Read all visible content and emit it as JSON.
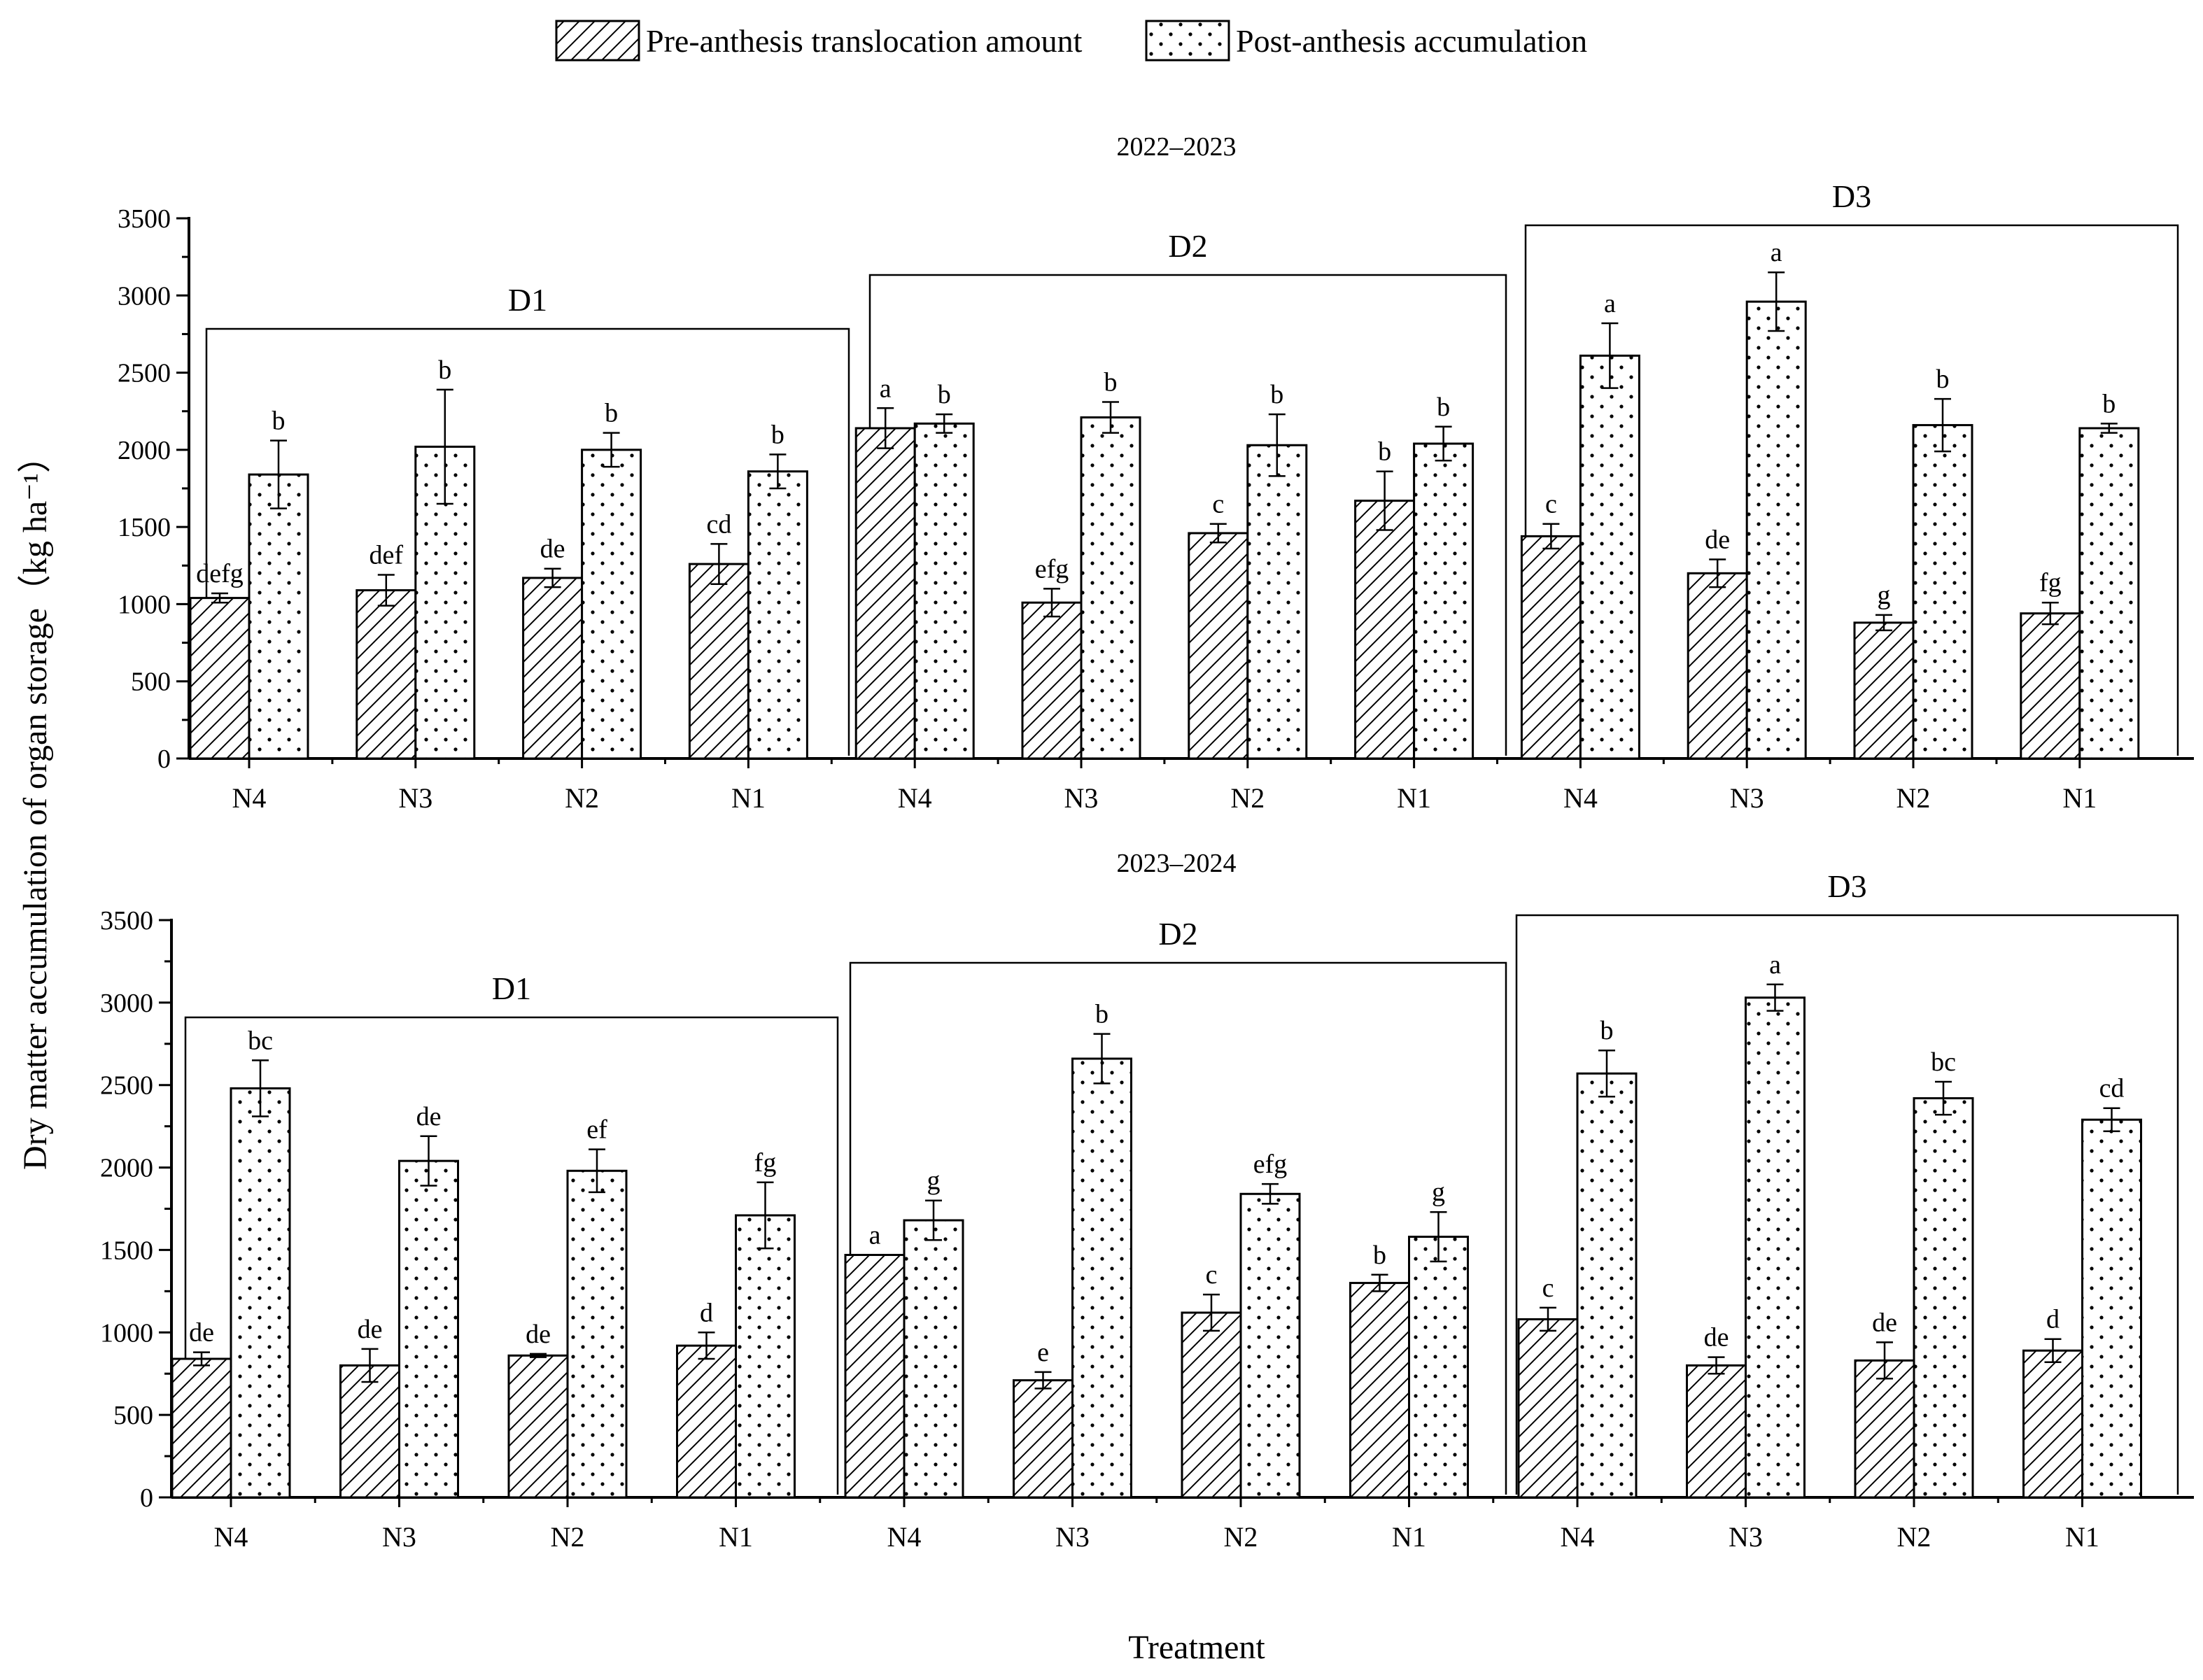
{
  "legend": [
    {
      "label": "Pre-anthesis translocation amount",
      "pattern": "hatch"
    },
    {
      "label": "Post-anthesis accumulation",
      "pattern": "dots"
    }
  ],
  "axes": {
    "ylabel": "Dry matter accumulation of organ storage（kg ha⁻¹）",
    "xlabel": "Treatment"
  },
  "colors": {
    "ink": "#000000",
    "fill": "#ffffff"
  },
  "chart_data": [
    {
      "type": "bar",
      "title": "2022–2023",
      "ylim": [
        0,
        3500
      ],
      "yticks": [
        0,
        500,
        1000,
        1500,
        2000,
        2500,
        3000,
        3500
      ],
      "groups": [
        "D1",
        "D2",
        "D3"
      ],
      "categories": [
        "N4",
        "N3",
        "N2",
        "N1",
        "N4",
        "N3",
        "N2",
        "N1",
        "N4",
        "N3",
        "N2",
        "N1"
      ],
      "series": [
        {
          "name": "Pre-anthesis translocation amount",
          "values": [
            1040,
            1090,
            1170,
            1260,
            2140,
            1010,
            1460,
            1670,
            1440,
            1200,
            880,
            940
          ],
          "errors": [
            30,
            100,
            60,
            130,
            130,
            90,
            60,
            190,
            80,
            90,
            50,
            70
          ],
          "letters": [
            "defg",
            "def",
            "de",
            "cd",
            "a",
            "efg",
            "c",
            "b",
            "c",
            "de",
            "g",
            "fg"
          ]
        },
        {
          "name": "Post-anthesis accumulation",
          "values": [
            1840,
            2020,
            2000,
            1860,
            2170,
            2210,
            2030,
            2040,
            2610,
            2960,
            2160,
            2140
          ],
          "errors": [
            220,
            370,
            110,
            110,
            60,
            100,
            200,
            110,
            210,
            190,
            170,
            30
          ],
          "letters": [
            "b",
            "b",
            "b",
            "b",
            "b",
            "b",
            "b",
            "b",
            "a",
            "a",
            "b",
            "b"
          ]
        }
      ]
    },
    {
      "type": "bar",
      "title": "2023–2024",
      "ylim": [
        0,
        3500
      ],
      "yticks": [
        0,
        500,
        1000,
        1500,
        2000,
        2500,
        3000,
        3500
      ],
      "groups": [
        "D1",
        "D2",
        "D3"
      ],
      "categories": [
        "N4",
        "N3",
        "N2",
        "N1",
        "N4",
        "N3",
        "N2",
        "N1",
        "N4",
        "N3",
        "N2",
        "N1"
      ],
      "series": [
        {
          "name": "Pre-anthesis translocation amount",
          "values": [
            840,
            800,
            860,
            920,
            1470,
            710,
            1120,
            1300,
            1080,
            800,
            830,
            890
          ],
          "errors": [
            40,
            100,
            10,
            80,
            0,
            50,
            110,
            50,
            70,
            50,
            110,
            70
          ],
          "letters": [
            "de",
            "de",
            "de",
            "d",
            "a",
            "e",
            "c",
            "b",
            "c",
            "de",
            "de",
            "d"
          ]
        },
        {
          "name": "Post-anthesis accumulation",
          "values": [
            2480,
            2040,
            1980,
            1710,
            1680,
            2660,
            1840,
            1580,
            2570,
            3030,
            2420,
            2290
          ],
          "errors": [
            170,
            150,
            130,
            200,
            120,
            150,
            60,
            150,
            140,
            80,
            100,
            70
          ],
          "letters": [
            "bc",
            "de",
            "ef",
            "fg",
            "g",
            "b",
            "efg",
            "g",
            "b",
            "a",
            "bc",
            "cd"
          ]
        }
      ]
    }
  ]
}
